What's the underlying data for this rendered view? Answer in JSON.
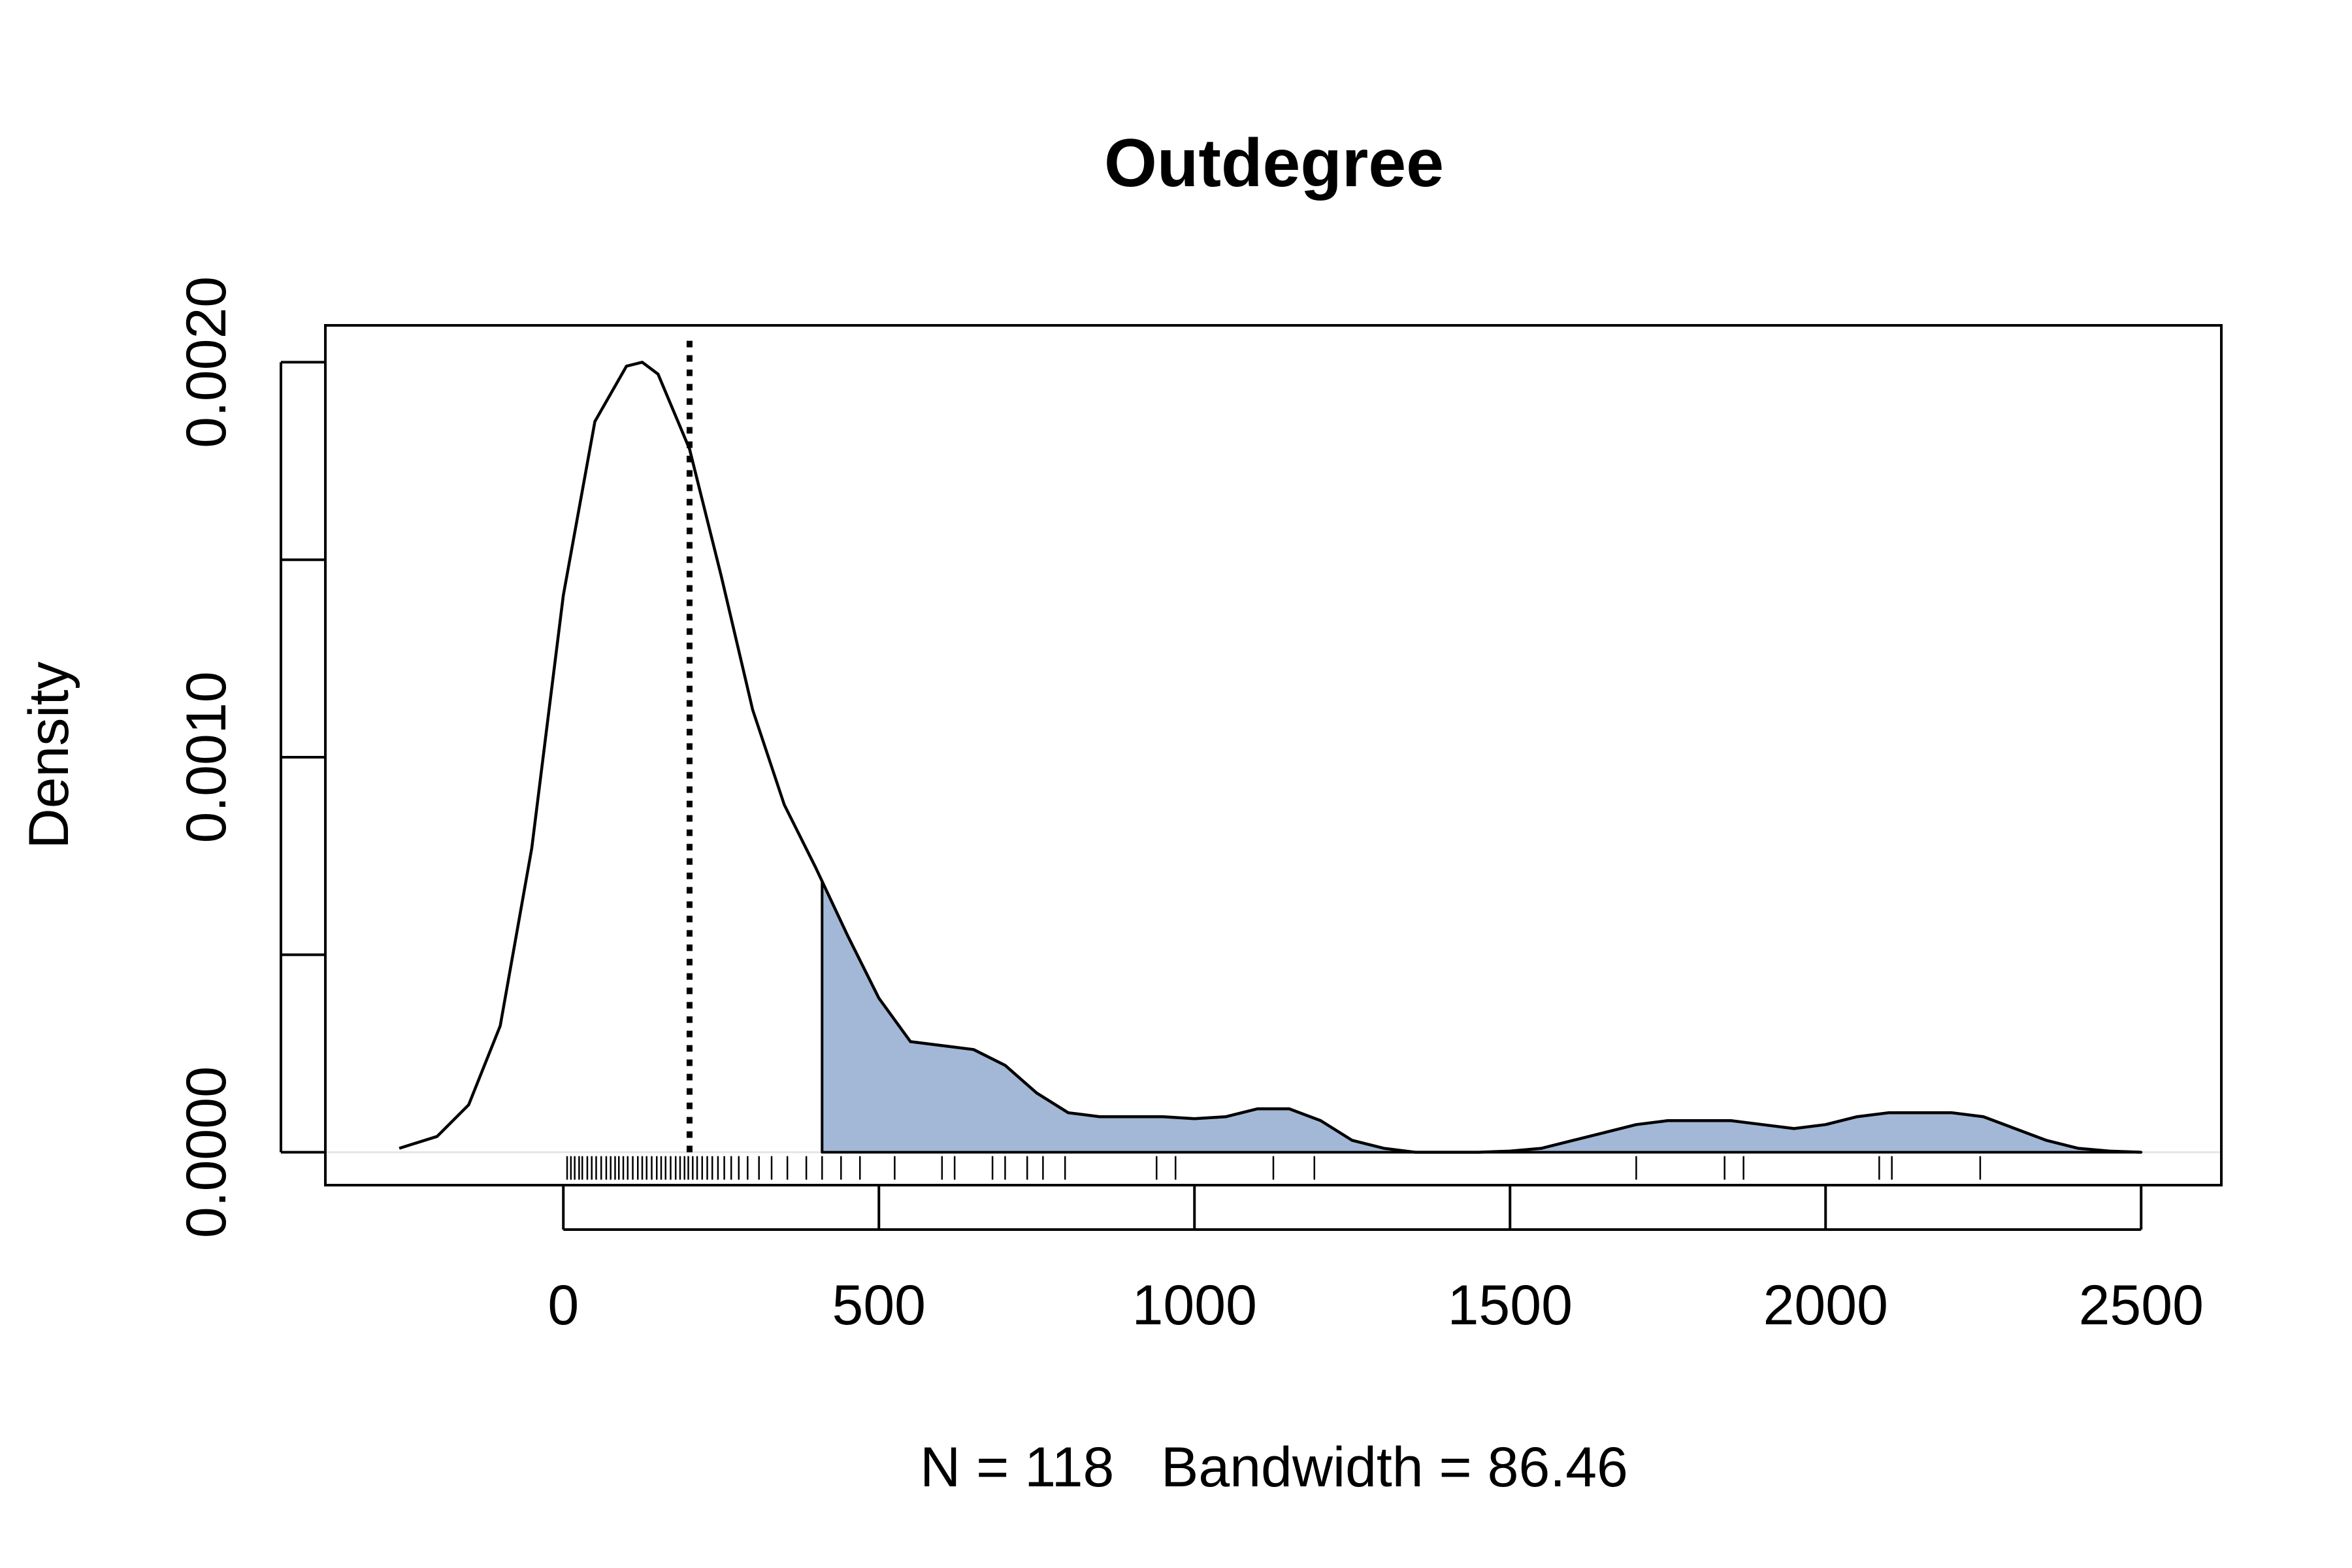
{
  "chart_data": {
    "type": "area",
    "title": "Outdegree",
    "xlabel": "N = 118   Bandwidth = 86.46",
    "ylabel": "Density",
    "xlim": [
      -375,
      2625
    ],
    "ylim": [
      -8e-05,
      0.00209
    ],
    "x_ticks": [
      0,
      500,
      1000,
      1500,
      2000,
      2500
    ],
    "x_tick_labels": [
      "0",
      "500",
      "1000",
      "1500",
      "2000",
      "2500"
    ],
    "y_ticks": [
      0,
      0.0005,
      0.001,
      0.0015,
      0.002
    ],
    "y_tick_labels": [
      "0.0000",
      "",
      "0.0010",
      "",
      "0.0020"
    ],
    "grid": false,
    "fill_color": "#a3b8d6",
    "density_curve": {
      "x": [
        -260,
        -200,
        -150,
        -100,
        -50,
        0,
        50,
        100,
        125,
        150,
        200,
        250,
        300,
        350,
        400,
        450,
        500,
        550,
        600,
        650,
        700,
        750,
        800,
        850,
        900,
        950,
        1000,
        1050,
        1100,
        1150,
        1200,
        1250,
        1300,
        1350,
        1400,
        1450,
        1500,
        1550,
        1600,
        1650,
        1700,
        1750,
        1800,
        1850,
        1900,
        1950,
        2000,
        2050,
        2100,
        2150,
        2200,
        2250,
        2300,
        2350,
        2400,
        2450,
        2500
      ],
      "y": [
        1e-05,
        4e-05,
        0.00012,
        0.00032,
        0.00077,
        0.00141,
        0.00185,
        0.00199,
        0.002,
        0.00197,
        0.00178,
        0.00146,
        0.00112,
        0.00088,
        0.00072,
        0.00055,
        0.00039,
        0.00028,
        0.00027,
        0.00026,
        0.00022,
        0.00015,
        0.0001,
        9e-05,
        9e-05,
        9e-05,
        8.5e-05,
        9e-05,
        0.00011,
        0.00011,
        8e-05,
        3e-05,
        1e-05,
        0.0,
        0.0,
        0.0,
        3e-06,
        1e-05,
        3e-05,
        5e-05,
        7e-05,
        8e-05,
        8e-05,
        8e-05,
        7e-05,
        6e-05,
        7e-05,
        9e-05,
        0.0001,
        0.0001,
        0.0001,
        9e-05,
        6e-05,
        3e-05,
        1e-05,
        3e-06,
        0.0
      ]
    },
    "shaded_region": {
      "x_from": 410,
      "x_to": 2500
    },
    "reference_line": {
      "x": 200,
      "style": "dotted"
    },
    "rug": [
      6,
      12,
      18,
      25,
      30,
      38,
      45,
      52,
      60,
      68,
      75,
      82,
      88,
      95,
      102,
      110,
      118,
      125,
      132,
      140,
      148,
      155,
      162,
      170,
      178,
      185,
      192,
      198,
      205,
      212,
      220,
      228,
      236,
      245,
      255,
      266,
      278,
      292,
      310,
      330,
      355,
      385,
      410,
      440,
      470,
      525,
      600,
      620,
      680,
      700,
      735,
      760,
      795,
      940,
      970,
      1125,
      1190,
      1700,
      1840,
      1870,
      2085,
      2105,
      2245
    ]
  }
}
